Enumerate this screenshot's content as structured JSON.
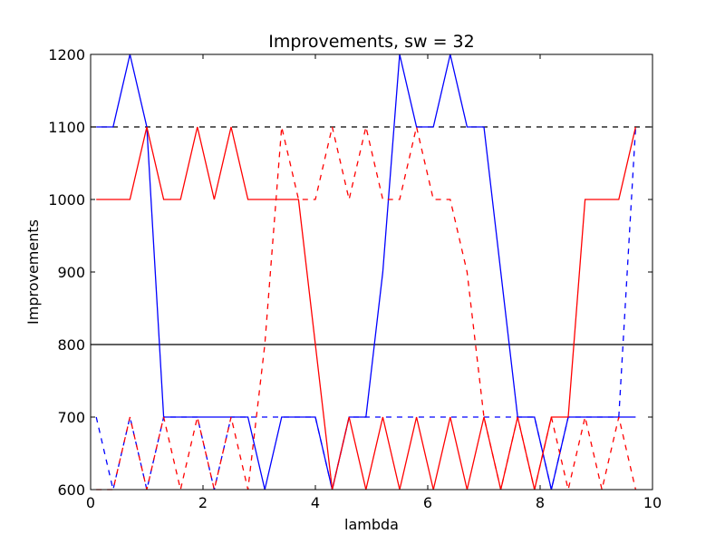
{
  "chart_data": {
    "type": "line",
    "title": "Improvements, sw = 32",
    "xlabel": "lambda",
    "ylabel": "Improvements",
    "xlim": [
      0,
      10
    ],
    "ylim": [
      600,
      1200
    ],
    "xticks": [
      0,
      2,
      4,
      6,
      8,
      10
    ],
    "yticks": [
      600,
      700,
      800,
      900,
      1000,
      1100,
      1200
    ],
    "grid": false,
    "legend": "none",
    "hlines": [
      {
        "y": 1100,
        "color": "#000000",
        "dash": "dashed"
      },
      {
        "y": 800,
        "color": "#000000",
        "dash": "solid"
      }
    ],
    "series": [
      {
        "color": "#0000ff",
        "dash": "solid",
        "x": [
          0.1,
          0.4,
          0.7,
          1.0,
          1.3,
          1.6,
          1.9,
          2.2,
          2.5,
          2.8,
          3.1,
          3.4,
          3.7,
          4.0,
          4.3,
          4.6,
          4.9,
          5.2,
          5.5,
          5.8,
          6.1,
          6.4,
          6.7,
          7.0,
          7.3,
          7.6,
          7.9,
          8.2,
          8.5,
          8.8,
          9.1,
          9.4,
          9.7
        ],
        "y": [
          1100,
          1100,
          1200,
          1100,
          700,
          700,
          700,
          700,
          700,
          700,
          600,
          700,
          700,
          700,
          600,
          700,
          700,
          900,
          1200,
          1100,
          1100,
          1200,
          1100,
          1100,
          900,
          700,
          700,
          600,
          700,
          700,
          700,
          700,
          700
        ]
      },
      {
        "color": "#0000ff",
        "dash": "dashed",
        "x": [
          0.1,
          0.4,
          0.7,
          1.0,
          1.3,
          1.6,
          1.9,
          2.2,
          2.5,
          2.8,
          3.1,
          3.4,
          3.7,
          4.0,
          4.3,
          4.6,
          4.9,
          5.2,
          5.5,
          5.8,
          6.1,
          6.4,
          6.7,
          7.0,
          7.3,
          7.6,
          7.9,
          8.2,
          8.5,
          8.8,
          9.1,
          9.4,
          9.7
        ],
        "y": [
          700,
          600,
          700,
          600,
          700,
          700,
          700,
          600,
          700,
          700,
          700,
          700,
          700,
          700,
          600,
          700,
          700,
          700,
          700,
          700,
          700,
          700,
          700,
          700,
          700,
          700,
          700,
          600,
          700,
          700,
          700,
          700,
          1100
        ]
      },
      {
        "color": "#ff0000",
        "dash": "solid",
        "x": [
          0.1,
          0.4,
          0.7,
          1.0,
          1.3,
          1.6,
          1.9,
          2.2,
          2.5,
          2.8,
          3.1,
          3.4,
          3.7,
          4.0,
          4.3,
          4.6,
          4.9,
          5.2,
          5.5,
          5.8,
          6.1,
          6.4,
          6.7,
          7.0,
          7.3,
          7.6,
          7.9,
          8.2,
          8.5,
          8.8,
          9.1,
          9.4,
          9.7
        ],
        "y": [
          1000,
          1000,
          1000,
          1100,
          1000,
          1000,
          1100,
          1000,
          1100,
          1000,
          1000,
          1000,
          1000,
          800,
          600,
          700,
          600,
          700,
          600,
          700,
          600,
          700,
          600,
          700,
          600,
          700,
          600,
          700,
          700,
          1000,
          1000,
          1000,
          1100
        ]
      },
      {
        "color": "#ff0000",
        "dash": "dashed",
        "x": [
          0.1,
          0.4,
          0.7,
          1.0,
          1.3,
          1.6,
          1.9,
          2.2,
          2.5,
          2.8,
          3.1,
          3.4,
          3.7,
          4.0,
          4.3,
          4.6,
          4.9,
          5.2,
          5.5,
          5.8,
          6.1,
          6.4,
          6.7,
          7.0,
          7.3,
          7.6,
          7.9,
          8.2,
          8.5,
          8.8,
          9.1,
          9.4,
          9.7
        ],
        "y": [
          600,
          600,
          700,
          600,
          700,
          600,
          700,
          600,
          700,
          600,
          800,
          1100,
          1000,
          1000,
          1100,
          1000,
          1100,
          1000,
          1000,
          1100,
          1000,
          1000,
          900,
          700,
          600,
          700,
          600,
          700,
          600,
          700,
          600,
          700,
          600
        ]
      }
    ]
  }
}
